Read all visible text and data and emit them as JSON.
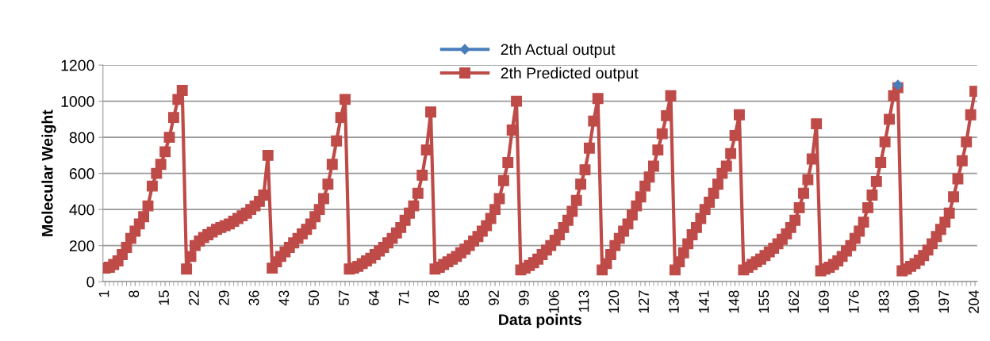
{
  "chart_data": {
    "type": "line",
    "xlabel": "Data points",
    "ylabel": "Molecular Weight",
    "categories": [
      "1",
      null,
      null,
      null,
      null,
      null,
      null,
      "8",
      null,
      null,
      null,
      null,
      null,
      null,
      "15",
      null,
      null,
      null,
      null,
      null,
      null,
      "22",
      null,
      null,
      null,
      null,
      null,
      null,
      "29",
      null,
      null,
      null,
      null,
      null,
      null,
      "36",
      null,
      null,
      null,
      null,
      null,
      null,
      "43",
      null,
      null,
      null,
      null,
      null,
      null,
      "50",
      null,
      null,
      null,
      null,
      null,
      null,
      "57",
      null,
      null,
      null,
      null,
      null,
      null,
      "64",
      null,
      null,
      null,
      null,
      null,
      null,
      "71",
      null,
      null,
      null,
      null,
      null,
      null,
      "78",
      null,
      null,
      null,
      null,
      null,
      null,
      "85",
      null,
      null,
      null,
      null,
      null,
      null,
      "92",
      null,
      null,
      null,
      null,
      null,
      null,
      "99",
      null,
      null,
      null,
      null,
      null,
      null,
      "106",
      null,
      null,
      null,
      null,
      null,
      null,
      "113",
      null,
      null,
      null,
      null,
      null,
      null,
      "120",
      null,
      null,
      null,
      null,
      null,
      null,
      "127",
      null,
      null,
      null,
      null,
      null,
      null,
      "134",
      null,
      null,
      null,
      null,
      null,
      null,
      "141",
      null,
      null,
      null,
      null,
      null,
      null,
      "148",
      null,
      null,
      null,
      null,
      null,
      null,
      "155",
      null,
      null,
      null,
      null,
      null,
      null,
      "162",
      null,
      null,
      null,
      null,
      null,
      null,
      "169",
      null,
      null,
      null,
      null,
      null,
      null,
      "176",
      null,
      null,
      null,
      null,
      null,
      null,
      "183",
      null,
      null,
      null,
      null,
      null,
      null,
      "190",
      null,
      null,
      null,
      null,
      null,
      null,
      "197",
      null,
      null,
      null,
      null,
      null,
      null,
      "204"
    ],
    "series": [
      {
        "name": "2th Actual output",
        "color": "#4a7ebb",
        "marker": "diamond",
        "values": [
          null,
          null,
          null,
          null,
          null,
          null,
          null,
          null,
          null,
          null,
          null,
          null,
          null,
          null,
          null,
          null,
          null,
          null,
          null,
          null,
          null,
          null,
          null,
          null,
          null,
          null,
          null,
          null,
          null,
          null,
          null,
          null,
          null,
          null,
          null,
          null,
          null,
          null,
          null,
          null,
          null,
          null,
          null,
          null,
          null,
          null,
          null,
          null,
          null,
          null,
          null,
          null,
          null,
          null,
          null,
          null,
          null,
          null,
          null,
          null,
          null,
          null,
          null,
          null,
          null,
          null,
          null,
          null,
          null,
          null,
          null,
          null,
          null,
          null,
          null,
          null,
          null,
          null,
          null,
          null,
          null,
          null,
          null,
          null,
          null,
          null,
          null,
          null,
          null,
          null,
          null,
          null,
          null,
          null,
          null,
          null,
          null,
          null,
          null,
          null,
          null,
          null,
          null,
          null,
          null,
          null,
          null,
          null,
          null,
          null,
          null,
          null,
          null,
          null,
          null,
          null,
          null,
          null,
          null,
          null,
          null,
          null,
          null,
          null,
          null,
          null,
          null,
          null,
          null,
          null,
          null,
          null,
          null,
          null,
          null,
          null,
          null,
          null,
          null,
          null,
          null,
          null,
          null,
          null,
          null,
          null,
          null,
          null,
          null,
          null,
          null,
          null,
          null,
          null,
          null,
          null,
          null,
          null,
          null,
          null,
          null,
          null,
          null,
          null,
          null,
          null,
          null,
          null,
          null,
          null,
          null,
          null,
          null,
          null,
          null,
          null,
          null,
          null,
          null,
          null,
          null,
          null,
          null,
          null,
          null,
          1090,
          null,
          null,
          null,
          null,
          null,
          null,
          null,
          null,
          null,
          null,
          null,
          null,
          null,
          null,
          null,
          null,
          null,
          null
        ]
      },
      {
        "name": "2th Predicted output",
        "color": "#be4b48",
        "marker": "square",
        "values": [
          75,
          80,
          95,
          115,
          150,
          190,
          240,
          280,
          320,
          360,
          420,
          530,
          600,
          650,
          720,
          800,
          910,
          1010,
          1060,
          70,
          140,
          200,
          225,
          245,
          260,
          275,
          290,
          300,
          310,
          320,
          335,
          350,
          365,
          380,
          400,
          420,
          445,
          480,
          700,
          75,
          110,
          140,
          165,
          190,
          215,
          240,
          265,
          290,
          320,
          360,
          400,
          460,
          540,
          650,
          780,
          910,
          1010,
          70,
          75,
          85,
          100,
          115,
          130,
          150,
          170,
          190,
          215,
          240,
          270,
          300,
          340,
          380,
          420,
          490,
          590,
          730,
          940,
          70,
          80,
          95,
          110,
          125,
          140,
          160,
          180,
          200,
          225,
          250,
          280,
          310,
          350,
          400,
          460,
          560,
          660,
          840,
          1000,
          65,
          75,
          90,
          105,
          125,
          150,
          175,
          200,
          230,
          260,
          300,
          340,
          390,
          450,
          540,
          620,
          740,
          890,
          1015,
          65,
          100,
          150,
          200,
          240,
          280,
          320,
          370,
          420,
          470,
          530,
          580,
          640,
          730,
          820,
          920,
          1030,
          65,
          110,
          160,
          210,
          260,
          300,
          350,
          400,
          440,
          490,
          540,
          600,
          640,
          710,
          810,
          925,
          65,
          80,
          95,
          110,
          125,
          145,
          165,
          185,
          210,
          235,
          265,
          300,
          340,
          410,
          490,
          565,
          680,
          875,
          60,
          70,
          80,
          95,
          115,
          140,
          170,
          200,
          240,
          280,
          330,
          410,
          480,
          555,
          660,
          775,
          900,
          1030,
          1075,
          60,
          70,
          85,
          100,
          120,
          145,
          175,
          210,
          250,
          290,
          330,
          380,
          470,
          570,
          670,
          775,
          925,
          1055
        ]
      }
    ],
    "ylim": [
      0,
      1200
    ],
    "yticks": [
      0,
      200,
      400,
      600,
      800,
      1000,
      1200
    ],
    "grid": "y",
    "legend": "top",
    "line_style": "solid"
  }
}
